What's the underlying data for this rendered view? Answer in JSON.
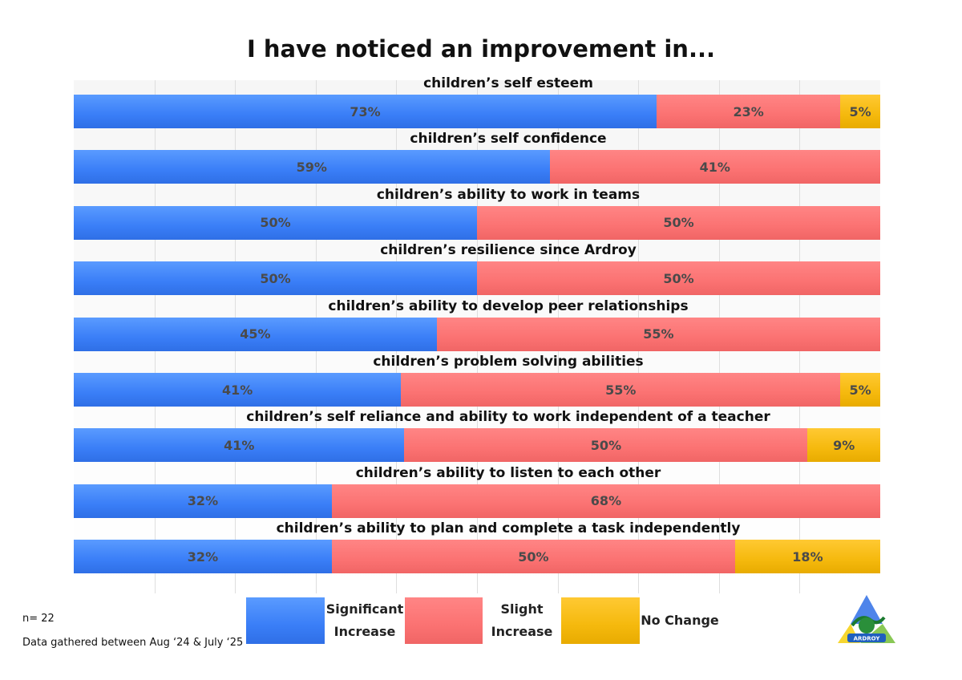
{
  "chart_data": {
    "type": "bar",
    "orientation": "horizontal",
    "stacked": true,
    "title": "I have noticed an improvement in...",
    "categories": [
      "children’s self esteem",
      "children’s self confidence",
      "children’s ability to work in teams",
      "children’s resilience since Ardroy",
      "children’s ability to develop peer relationships",
      "children’s problem solving abilities",
      "children’s self reliance and ability to work independent of a teacher",
      "children’s ability to listen to each other",
      "children’s ability to plan and complete a task independently"
    ],
    "series": [
      {
        "name": "Significant Increase",
        "color": "#3a7ef7",
        "values": [
          73,
          59,
          50,
          50,
          45,
          41,
          41,
          32,
          32
        ]
      },
      {
        "name": "Slight Increase",
        "color": "#fb7272",
        "values": [
          23,
          41,
          50,
          50,
          55,
          55,
          50,
          68,
          50
        ]
      },
      {
        "name": "No Change",
        "color": "#f5b90d",
        "values": [
          5,
          0,
          0,
          0,
          0,
          5,
          9,
          0,
          18
        ]
      }
    ],
    "value_suffix": "%",
    "xlim": [
      0,
      100
    ],
    "grid": true,
    "legend": {
      "position": "bottom",
      "entries": [
        {
          "line1": "Significant",
          "line2": "Increase"
        },
        {
          "line1": "Slight",
          "line2": "Increase"
        },
        {
          "line1": "No Change",
          "line2": ""
        }
      ]
    }
  },
  "notes": {
    "sample_size": "n= 22",
    "data_period": "Data gathered between Aug ‘24 & July ‘25"
  },
  "logo": {
    "text": "ARDROY"
  }
}
